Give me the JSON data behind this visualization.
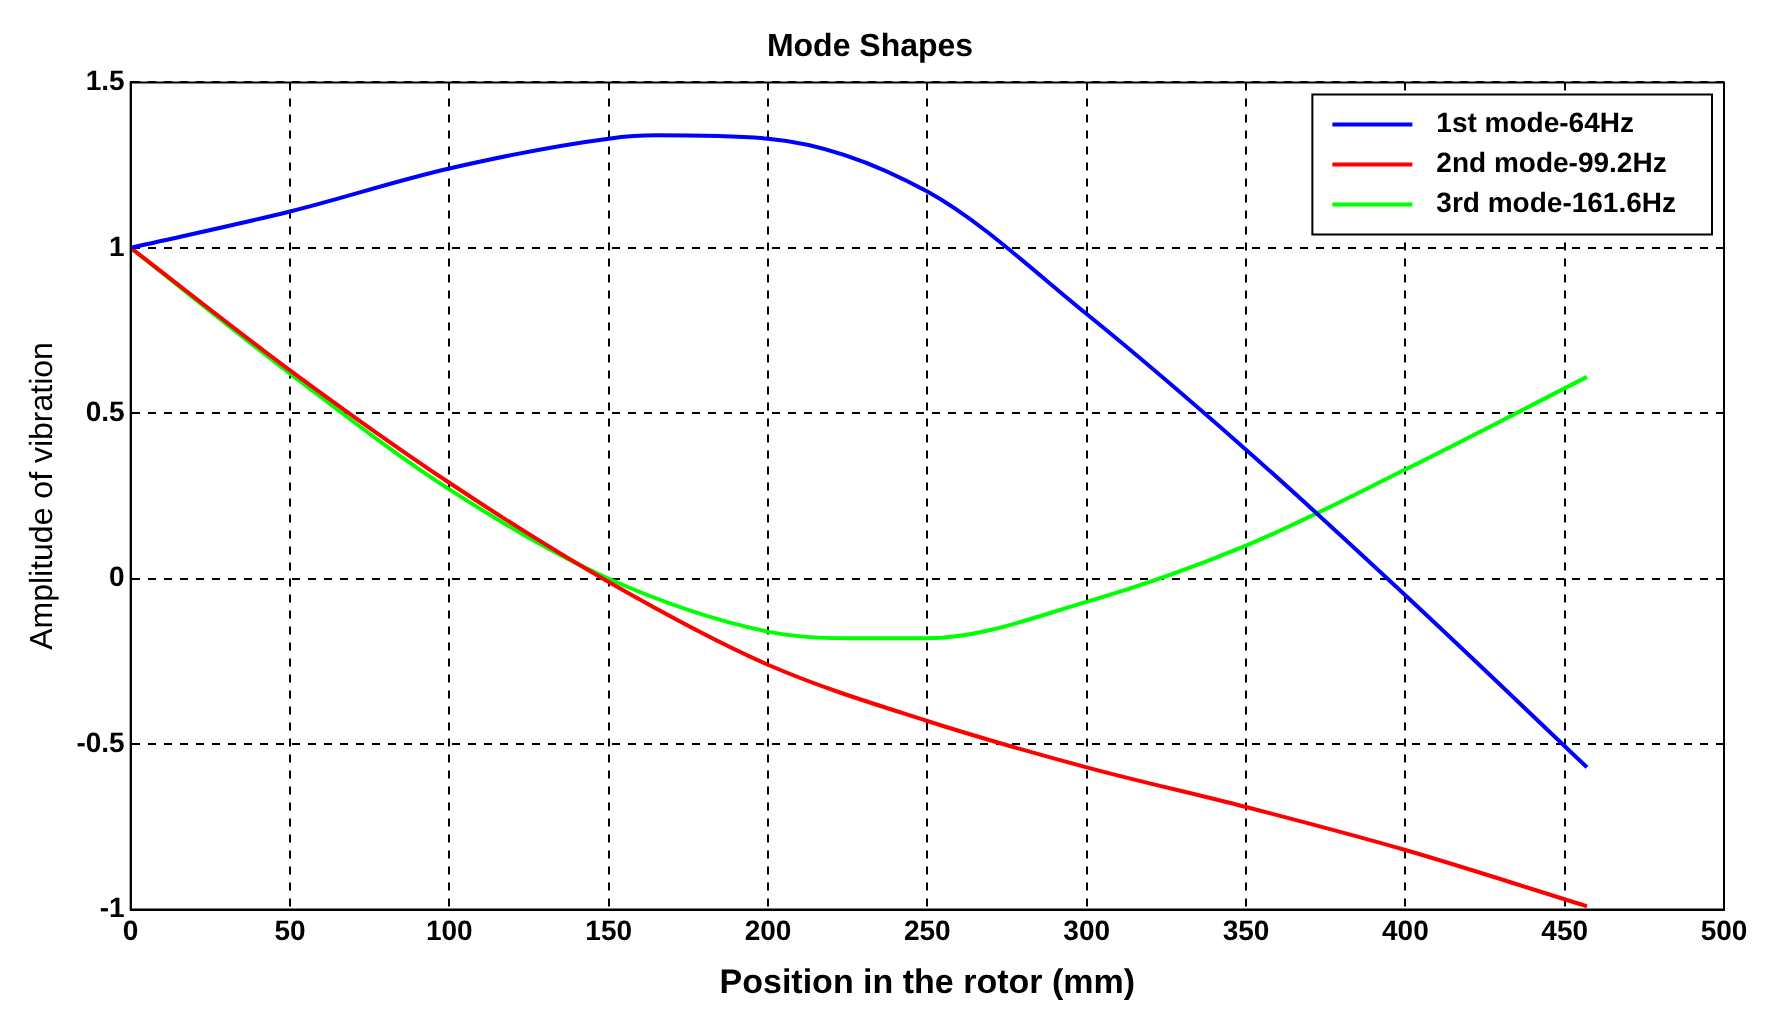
{
  "chart_data": {
    "type": "line",
    "title": "Mode Shapes",
    "xlabel": "Position in the rotor (mm)",
    "ylabel": "Amplitude of vibration",
    "xlim": [
      0,
      500
    ],
    "xticks": [
      0,
      50,
      100,
      150,
      200,
      250,
      300,
      350,
      400,
      450,
      500
    ],
    "ylim": [
      -1,
      1.5
    ],
    "yticks": [
      -1,
      -0.5,
      0,
      0.5,
      1,
      1.5
    ],
    "grid": true,
    "legend": "top right",
    "marker": "none",
    "line_style": "solid",
    "series": [
      {
        "name": "1st mode-64Hz",
        "color": "#0000ff",
        "x": [
          0,
          50,
          100,
          150,
          165,
          200,
          250,
          300,
          350,
          400,
          457
        ],
        "values": [
          1,
          1.11,
          1.24,
          1.33,
          1.34,
          1.33,
          1.17,
          0.8,
          0.39,
          -0.05,
          -0.57
        ]
      },
      {
        "name": "2nd mode-99.2Hz",
        "color": "#ff0000",
        "x": [
          0,
          50,
          100,
          150,
          200,
          250,
          300,
          350,
          400,
          457
        ],
        "values": [
          1,
          0.63,
          0.29,
          -0.01,
          -0.26,
          -0.43,
          -0.57,
          -0.69,
          -0.82,
          -0.99
        ]
      },
      {
        "name": "3rd mode-161.6Hz",
        "color": "#00ff00",
        "x": [
          0,
          50,
          100,
          150,
          200,
          225,
          250,
          300,
          350,
          400,
          457
        ],
        "values": [
          1,
          0.62,
          0.27,
          0,
          -0.16,
          -0.18,
          -0.18,
          -0.07,
          0.1,
          0.33,
          0.61
        ]
      }
    ]
  }
}
